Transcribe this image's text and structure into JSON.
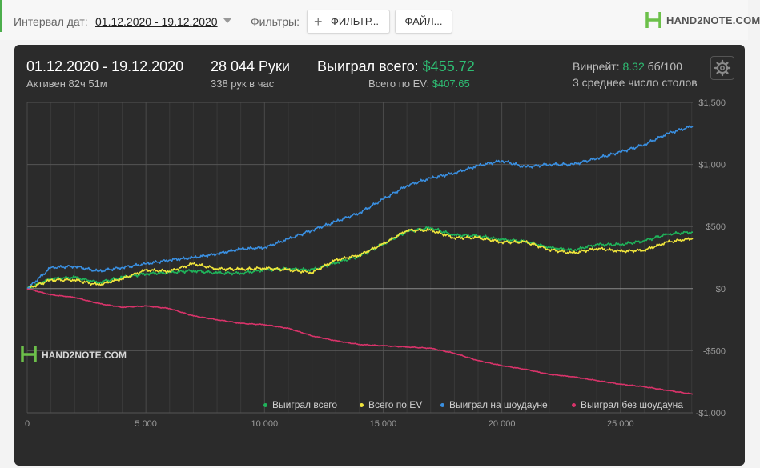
{
  "toolbar": {
    "date_interval_label": "Интервал дат:",
    "date_interval_value": "01.12.2020 - 19.12.2020",
    "filters_label": "Фильтры:",
    "filters_button": "ФИЛЬТР...",
    "files_button": "ФАЙЛ...",
    "logo_text": "HAND2NOTE.COM"
  },
  "summary": {
    "period": "01.12.2020 - 19.12.2020",
    "active": "Активен 82ч 51м",
    "hands": "28 044 Руки",
    "hands_per_hour": "338 рук в час",
    "won_total_label": "Выиграл всего:",
    "won_total_value": "$455.72",
    "ev_label": "Всего по EV:",
    "ev_value": "$407.65",
    "winrate_label": "Винрейт:",
    "winrate_value": "8.32",
    "winrate_unit": "бб/100",
    "avg_tables": "3 среднее число столов"
  },
  "watermark": "HAND2NOTE.COM",
  "colors": {
    "won_total": "#1fb35a",
    "ev": "#f0e53c",
    "showdown": "#3a8fe0",
    "non_showdown": "#d9336a",
    "positive": "#2ebd73"
  },
  "chart_data": {
    "type": "line",
    "xlim": [
      0,
      28044
    ],
    "ylim": [
      -1000,
      1500
    ],
    "xticks": [
      0,
      5000,
      10000,
      15000,
      20000,
      25000
    ],
    "xtick_labels": [
      "0",
      "5 000",
      "10 000",
      "15 000",
      "20 000",
      "25 000"
    ],
    "yticks": [
      1500,
      1000,
      500,
      0,
      -500,
      -1000
    ],
    "ytick_labels": [
      "$1,500",
      "$1,000",
      "$500",
      "$0",
      "-$500",
      "-$1,000"
    ],
    "grid": true,
    "legend_position": "bottom-right",
    "series": [
      {
        "name": "Выиграл всего",
        "color": "#1fb35a",
        "x": [
          0,
          1000,
          2000,
          3000,
          4000,
          5000,
          6000,
          7000,
          8000,
          9000,
          10000,
          11000,
          12000,
          13000,
          14000,
          15000,
          16000,
          17000,
          18000,
          19000,
          20000,
          21000,
          22000,
          23000,
          24000,
          25000,
          26000,
          27000,
          28044
        ],
        "y": [
          0,
          80,
          90,
          50,
          90,
          120,
          130,
          145,
          125,
          125,
          150,
          160,
          150,
          210,
          260,
          360,
          460,
          490,
          430,
          425,
          395,
          380,
          330,
          310,
          355,
          355,
          385,
          440,
          455
        ]
      },
      {
        "name": "Всего по EV",
        "color": "#f0e53c",
        "x": [
          0,
          1000,
          2000,
          3000,
          4000,
          5000,
          6000,
          7000,
          8000,
          9000,
          10000,
          11000,
          12000,
          13000,
          14000,
          15000,
          16000,
          17000,
          18000,
          19000,
          20000,
          21000,
          22000,
          23000,
          24000,
          25000,
          26000,
          27000,
          28044
        ],
        "y": [
          0,
          70,
          70,
          30,
          80,
          150,
          140,
          200,
          160,
          155,
          165,
          150,
          130,
          230,
          270,
          360,
          470,
          470,
          410,
          410,
          375,
          375,
          315,
          285,
          325,
          300,
          310,
          375,
          405
        ]
      },
      {
        "name": "Выиграл на шоудауне",
        "color": "#3a8fe0",
        "x": [
          0,
          1000,
          2000,
          3000,
          4000,
          5000,
          6000,
          7000,
          8000,
          9000,
          10000,
          11000,
          12000,
          13000,
          14000,
          15000,
          16000,
          17000,
          18000,
          19000,
          20000,
          21000,
          22000,
          23000,
          24000,
          25000,
          26000,
          27000,
          28044
        ],
        "y": [
          0,
          170,
          180,
          140,
          170,
          200,
          230,
          250,
          280,
          320,
          330,
          400,
          470,
          540,
          610,
          720,
          830,
          890,
          930,
          990,
          1030,
          980,
          1000,
          1000,
          1050,
          1100,
          1160,
          1250,
          1310
        ]
      },
      {
        "name": "Выиграл без шоудауна",
        "color": "#d9336a",
        "x": [
          0,
          1000,
          2000,
          3000,
          4000,
          5000,
          6000,
          7000,
          8000,
          9000,
          10000,
          11000,
          12000,
          13000,
          14000,
          15000,
          16000,
          17000,
          18000,
          19000,
          20000,
          21000,
          22000,
          23000,
          24000,
          25000,
          26000,
          27000,
          28044
        ],
        "y": [
          0,
          -50,
          -70,
          -120,
          -150,
          -140,
          -160,
          -220,
          -250,
          -280,
          -290,
          -320,
          -380,
          -420,
          -450,
          -460,
          -470,
          -480,
          -520,
          -580,
          -620,
          -650,
          -690,
          -710,
          -740,
          -770,
          -790,
          -820,
          -850
        ]
      }
    ]
  }
}
